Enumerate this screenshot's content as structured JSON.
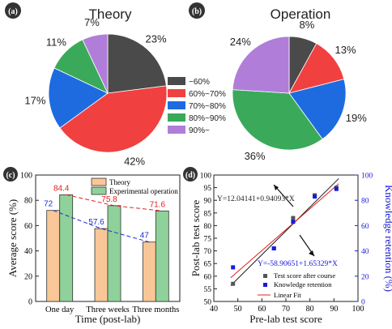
{
  "chart_data": [
    {
      "panel": "(a)",
      "type": "pie",
      "title": "Theory",
      "labels": [
        "~60%",
        "60%~70%",
        "70%~80%",
        "80%~90%",
        "90%~"
      ],
      "values": [
        23,
        42,
        17,
        11,
        7
      ],
      "value_labels": [
        "23%",
        "42%",
        "17%",
        "11%",
        "7%"
      ],
      "colors": [
        "#4a4a4a",
        "#f04040",
        "#1e6be0",
        "#3aaa5a",
        "#b07ed8"
      ]
    },
    {
      "panel": "(b)",
      "type": "pie",
      "title": "Operation",
      "labels": [
        "~60%",
        "60%~70%",
        "70%~80%",
        "80%~90%",
        "90%~"
      ],
      "values": [
        8,
        13,
        19,
        36,
        24
      ],
      "value_labels": [
        "8%",
        "13%",
        "19%",
        "36%",
        "24%"
      ],
      "colors": [
        "#4a4a4a",
        "#f04040",
        "#1e6be0",
        "#3aaa5a",
        "#b07ed8"
      ]
    },
    {
      "panel": "(c)",
      "type": "bar",
      "categories": [
        "One day",
        "Three weeks",
        "Three months"
      ],
      "series": [
        {
          "name": "Theory",
          "values": [
            72,
            57.6,
            47
          ],
          "labels": [
            "72",
            "57.6",
            "47"
          ],
          "color": "#f9c697",
          "trend_color": "#1a2fd0"
        },
        {
          "name": "Experimental operation",
          "values": [
            84.4,
            75.8,
            71.6
          ],
          "labels": [
            "84.4",
            "75.8",
            "71.6"
          ],
          "color": "#8fd19a",
          "trend_color": "#e02020"
        }
      ],
      "xlabel": "Time (post-lab)",
      "ylabel": "Average score (%)",
      "ylim": [
        0,
        100
      ],
      "yticks": [
        0,
        20,
        40,
        60,
        80,
        100
      ],
      "legend": "top-center"
    },
    {
      "panel": "(d)",
      "type": "scatter",
      "xlabel": "Pre-lab test score",
      "ylabel": "Post-lab test score",
      "y2label": "Knowledge retention (%)",
      "xlim": [
        40,
        100
      ],
      "ylim": [
        50,
        100
      ],
      "y2lim": [
        0,
        100
      ],
      "xticks": [
        40,
        50,
        60,
        70,
        80,
        90,
        100
      ],
      "yticks": [
        50,
        55,
        60,
        65,
        70,
        75,
        80,
        85,
        90,
        95,
        100
      ],
      "y2ticks": [
        0,
        20,
        40,
        60,
        80,
        100
      ],
      "series": [
        {
          "name": "Test score after course",
          "axis": "left",
          "color": "#555555",
          "marker": "square",
          "points": [
            [
              48,
              57
            ],
            [
              65,
              71
            ],
            [
              73,
              83
            ],
            [
              82,
              92
            ],
            [
              91,
              95
            ]
          ]
        },
        {
          "name": "Knowledge retention",
          "axis": "right",
          "color": "#1a1adc",
          "marker": "square",
          "points": [
            [
              48,
              27
            ],
            [
              65,
              42
            ],
            [
              73,
              63
            ],
            [
              82,
              83
            ],
            [
              91,
              89
            ]
          ]
        }
      ],
      "fits": [
        {
          "axis": "left",
          "intercept": 12.04141,
          "slope": 0.94093,
          "x_range": [
            47,
            92
          ],
          "color": "#1f1f1f"
        },
        {
          "axis": "right",
          "intercept": -58.90651,
          "slope": 1.65329,
          "x_range": [
            47,
            92
          ],
          "color": "#e02020"
        }
      ],
      "fit_legend": "Linear Fit",
      "equations": [
        "Y=12.04141+0.94093*X",
        "Y=-58.90651+1.65329*X"
      ],
      "legend": "bottom-right"
    }
  ]
}
